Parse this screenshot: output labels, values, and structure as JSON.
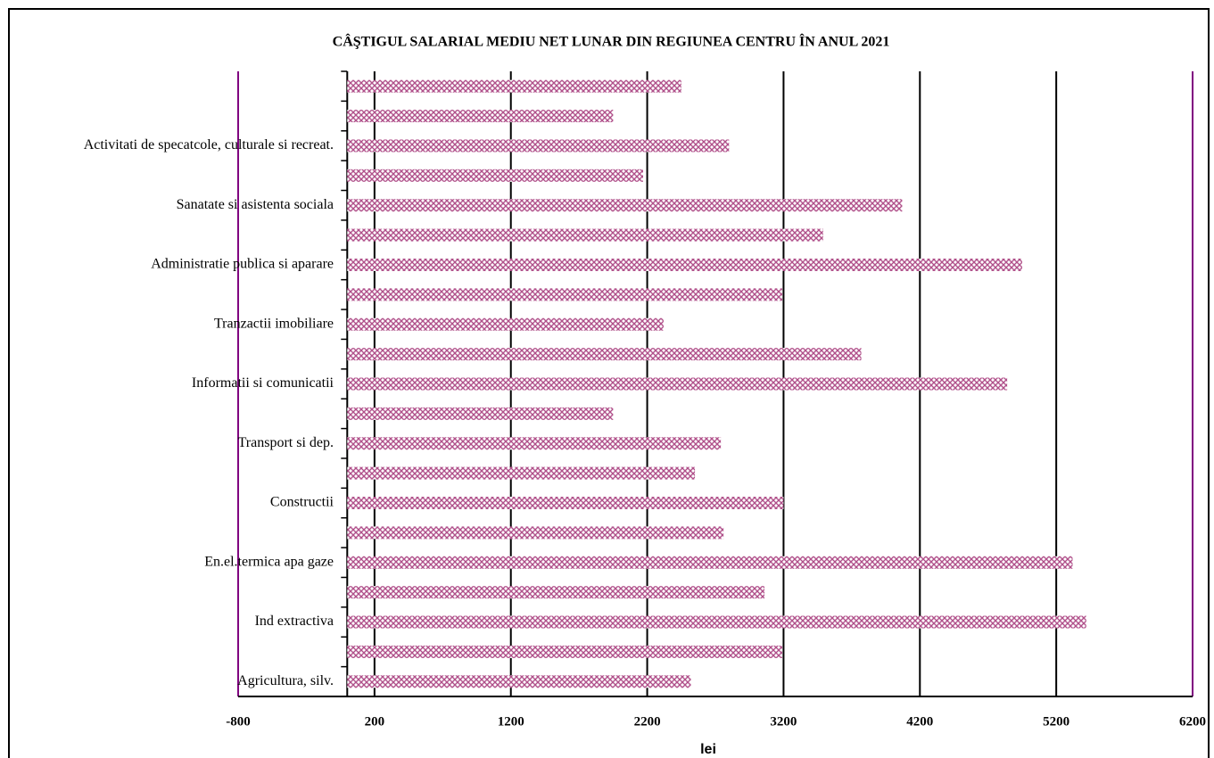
{
  "chart_data": {
    "type": "barh",
    "title": "CÂŞTIGUL SALARIAL MEDIU NET LUNAR DIN REGIUNEA CENTRU ÎN ANUL 2021",
    "xlabel": "lei",
    "categories": [
      "Agricultura, silv.",
      null,
      "Ind extractiva",
      null,
      "En.el.termica apa gaze",
      null,
      "Constructii",
      null,
      "Transport si dep.",
      null,
      "Informatii si comunicatii",
      null,
      "Tranzactii imobiliare",
      null,
      "Administratie publica si aparare",
      null,
      "Sanatate si asistenta sociala",
      null,
      "Activitati de specatcole, culturale si recreat.",
      null,
      null
    ],
    "values": [
      2520,
      3190,
      5420,
      3060,
      5320,
      2760,
      3200,
      2550,
      2740,
      1950,
      4840,
      3770,
      2320,
      3190,
      4950,
      3490,
      4070,
      2170,
      2800,
      1950,
      2450
    ],
    "color": "#b0508a",
    "xlim": [
      -800,
      6200
    ],
    "xticks": [
      -800,
      200,
      1200,
      2200,
      3200,
      4200,
      5200,
      6200
    ],
    "grid": true
  }
}
